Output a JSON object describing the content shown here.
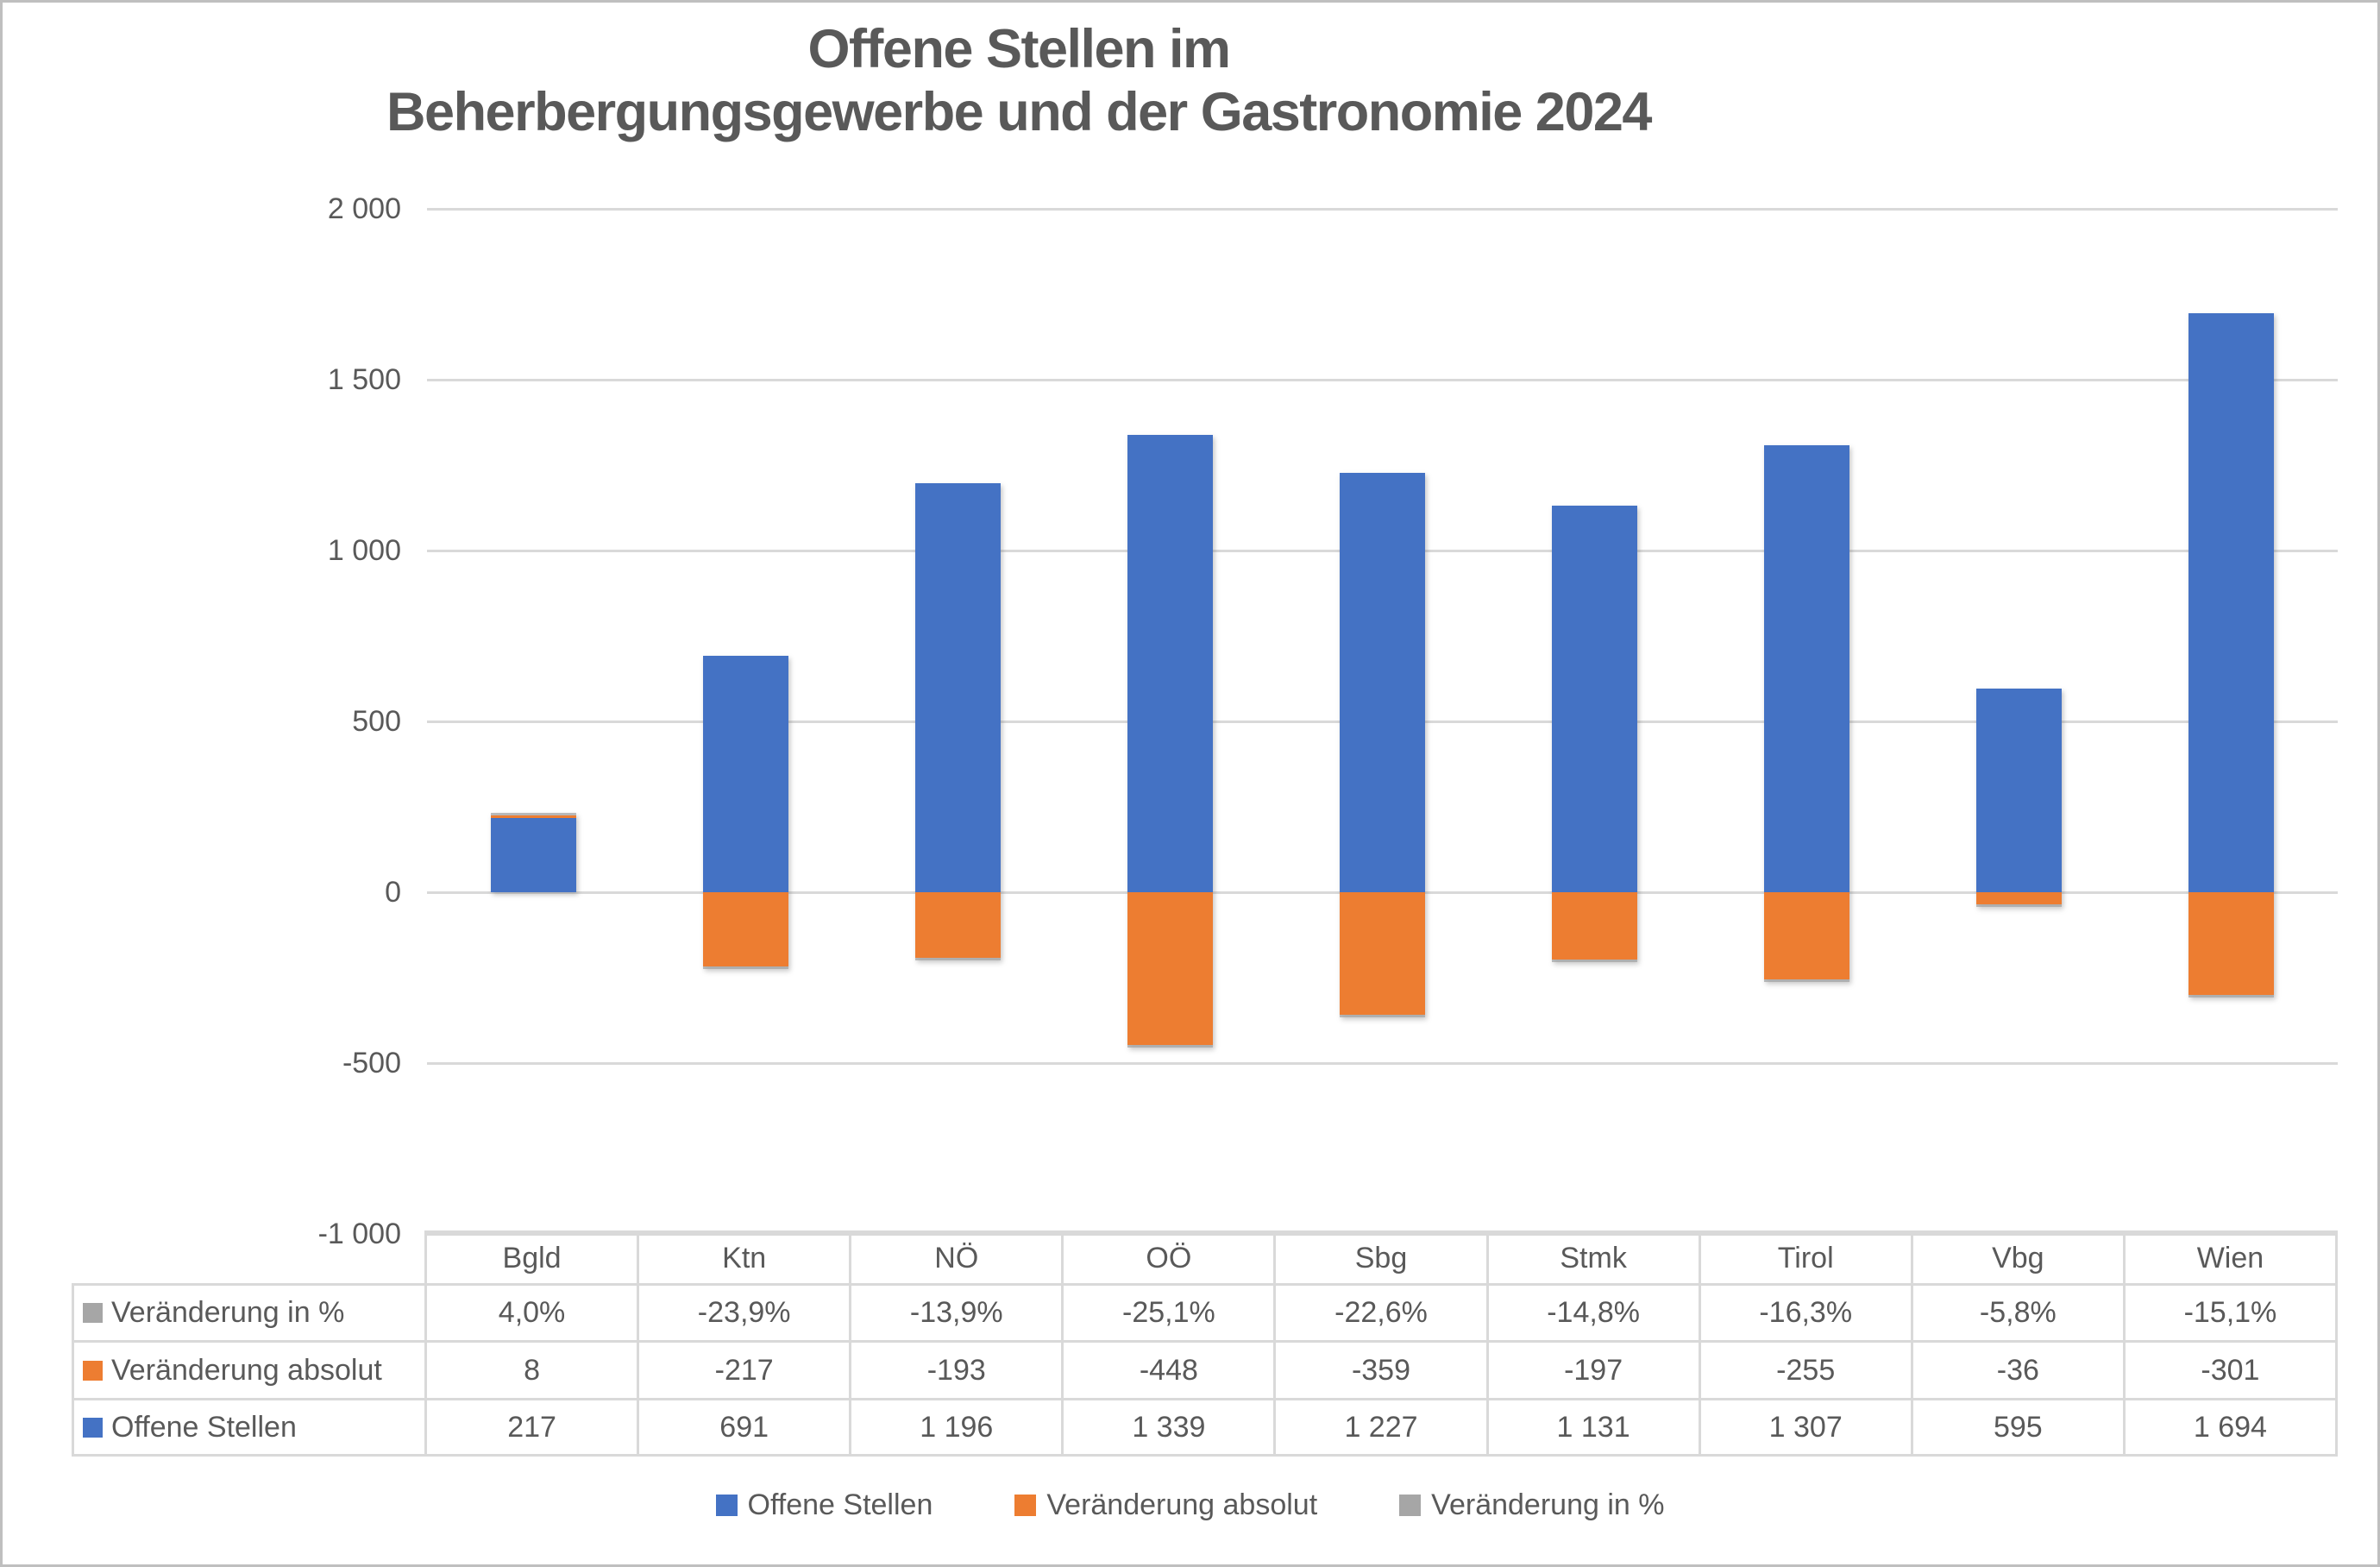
{
  "title": {
    "line1": "Offene Stellen im",
    "line2": "Beherbergungsgewerbe und der Gastronomie 2024"
  },
  "chart_data": {
    "type": "bar",
    "stacked": true,
    "title": "Offene Stellen im Beherbergungsgewerbe und der Gastronomie 2024",
    "categories": [
      "Bgld",
      "Ktn",
      "NÖ",
      "OÖ",
      "Sbg",
      "Stmk",
      "Tirol",
      "Vbg",
      "Wien"
    ],
    "series": [
      {
        "name": "Offene Stellen",
        "color": "#4472C4",
        "values": [
          217,
          691,
          1196,
          1339,
          1227,
          1131,
          1307,
          595,
          1694
        ],
        "labels": [
          "217",
          "691",
          "1 196",
          "1 339",
          "1 227",
          "1 131",
          "1 307",
          "595",
          "1 694"
        ]
      },
      {
        "name": "Veränderung absolut",
        "color": "#ED7D31",
        "values": [
          8,
          -217,
          -193,
          -448,
          -359,
          -197,
          -255,
          -36,
          -301
        ],
        "labels": [
          "8",
          "-217",
          "-193",
          "-448",
          "-359",
          "-197",
          "-255",
          "-36",
          "-301"
        ]
      },
      {
        "name": "Veränderung in %",
        "color": "#A6A6A6",
        "values": [
          4.0,
          -23.9,
          -13.9,
          -25.1,
          -22.6,
          -14.8,
          -16.3,
          -5.8,
          -15.1
        ],
        "labels": [
          "4,0%",
          "-23,9%",
          "-13,9%",
          "-25,1%",
          "-22,6%",
          "-14,8%",
          "-16,3%",
          "-5,8%",
          "-15,1%"
        ]
      }
    ],
    "ylim": [
      -1000,
      2000
    ],
    "yticks": [
      {
        "value": 2000,
        "label": "2 000"
      },
      {
        "value": 1500,
        "label": "1 500"
      },
      {
        "value": 1000,
        "label": "1 000"
      },
      {
        "value": 500,
        "label": "500"
      },
      {
        "value": 0,
        "label": "0"
      },
      {
        "value": -500,
        "label": "-500"
      },
      {
        "value": -1000,
        "label": "-1 000"
      }
    ],
    "grid": true,
    "legend_position": "bottom",
    "data_table": {
      "shown": true,
      "row_order": [
        "Veränderung in %",
        "Veränderung absolut",
        "Offene Stellen"
      ]
    }
  },
  "legend": {
    "items": [
      {
        "label": "Offene Stellen",
        "color": "#4472C4"
      },
      {
        "label": "Veränderung absolut",
        "color": "#ED7D31"
      },
      {
        "label": "Veränderung in %",
        "color": "#A6A6A6"
      }
    ]
  },
  "colors": {
    "grid": "#D9D9D9",
    "text": "#595959",
    "canvas_border": "#BFBFBF"
  }
}
